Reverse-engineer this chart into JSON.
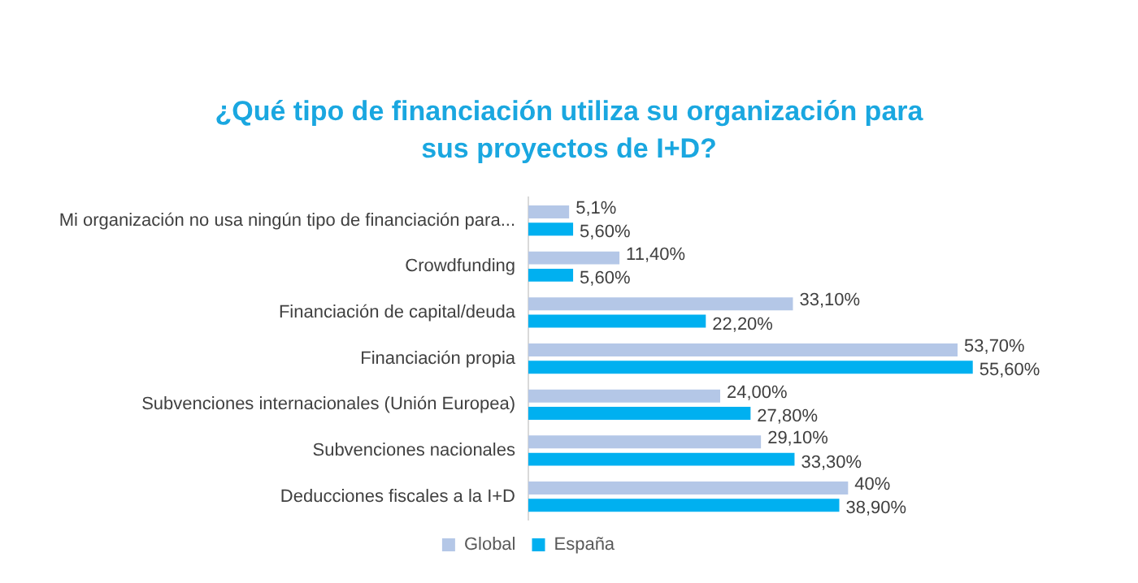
{
  "chart_data": {
    "type": "bar",
    "orientation": "horizontal",
    "tick_labels": "y",
    "title": "¿Qué tipo de financiación utiliza su organización para sus proyectos de I+D?",
    "categories": [
      "Mi organización no usa ningún tipo de financiación para...",
      "Crowdfunding",
      "Financiación de capital/deuda",
      "Financiación propia",
      "Subvenciones internacionales (Unión Europea)",
      "Subvenciones nacionales",
      "Deducciones fiscales a la I+D"
    ],
    "series": [
      {
        "name": "Global",
        "color": "#b4c7e7",
        "values": [
          5.1,
          11.4,
          33.1,
          53.7,
          24.0,
          29.1,
          40
        ],
        "value_labels": [
          "5,1%",
          "11,40%",
          "33,10%",
          "53,70%",
          "24,00%",
          "29,10%",
          "40%"
        ]
      },
      {
        "name": "España",
        "color": "#00b0f0",
        "values": [
          5.6,
          5.6,
          22.2,
          55.6,
          27.8,
          33.3,
          38.9
        ],
        "value_labels": [
          "5,60%",
          "5,60%",
          "22,20%",
          "55,60%",
          "27,80%",
          "33,30%",
          "38,90%"
        ]
      }
    ],
    "grid": false,
    "legend": "bottom"
  }
}
